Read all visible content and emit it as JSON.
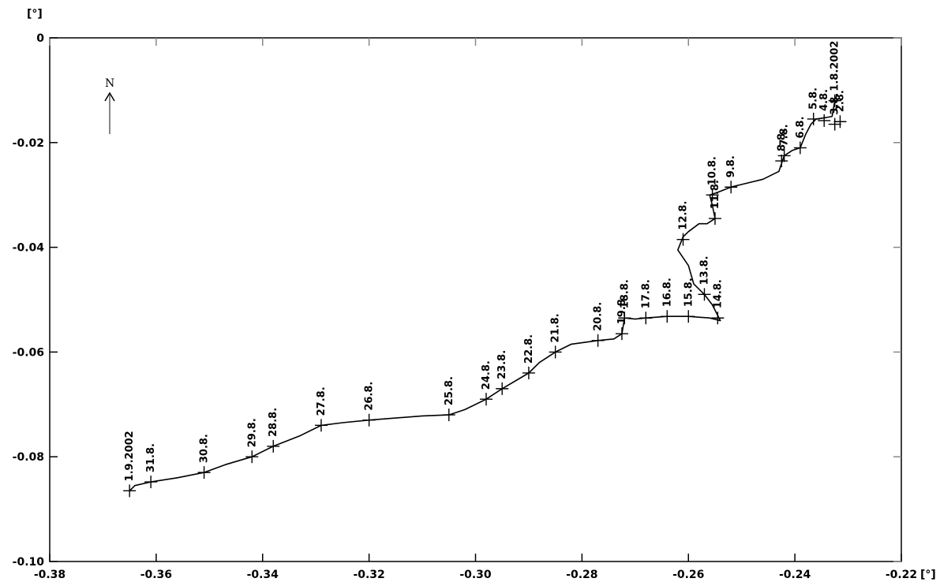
{
  "chart_data": {
    "type": "line",
    "title": "",
    "xlabel": "",
    "ylabel": "",
    "x_unit": "[°]",
    "y_unit": "[°]",
    "xlim": [
      -0.38,
      -0.22
    ],
    "ylim": [
      -0.1,
      0
    ],
    "x_ticks": [
      -0.38,
      -0.36,
      -0.34,
      -0.32,
      -0.3,
      -0.28,
      -0.26,
      -0.24,
      -0.22
    ],
    "x_tick_labels": [
      "-0.38",
      "-0.36",
      "-0.34",
      "-0.32",
      "-0.30",
      "-0.28",
      "-0.26",
      "-0.24",
      "-0.22"
    ],
    "y_ticks": [
      0,
      -0.02,
      -0.04,
      -0.06,
      -0.08,
      -0.1
    ],
    "y_tick_labels": [
      "0",
      "-0.02",
      "-0.04",
      "-0.06",
      "-0.08",
      "-0.10"
    ],
    "grid": false,
    "north_arrow": "N",
    "series": [
      {
        "color": "#000000",
        "points": [
          [
            -0.2325,
            -0.012
          ],
          [
            -0.233,
            -0.015
          ],
          [
            -0.234,
            -0.0152
          ],
          [
            -0.236,
            -0.0155
          ],
          [
            -0.237,
            -0.0165
          ],
          [
            -0.238,
            -0.0185
          ],
          [
            -0.239,
            -0.021
          ],
          [
            -0.2405,
            -0.0215
          ],
          [
            -0.242,
            -0.0225
          ],
          [
            -0.243,
            -0.0255
          ],
          [
            -0.246,
            -0.027
          ],
          [
            -0.25,
            -0.028
          ],
          [
            -0.252,
            -0.0285
          ],
          [
            -0.2545,
            -0.0295
          ],
          [
            -0.256,
            -0.03
          ],
          [
            -0.2555,
            -0.032
          ],
          [
            -0.255,
            -0.0345
          ],
          [
            -0.2565,
            -0.0355
          ],
          [
            -0.258,
            -0.0355
          ],
          [
            -0.26,
            -0.037
          ],
          [
            -0.261,
            -0.038
          ],
          [
            -0.262,
            -0.0405
          ],
          [
            -0.26,
            -0.0435
          ],
          [
            -0.259,
            -0.047
          ],
          [
            -0.257,
            -0.049
          ],
          [
            -0.2555,
            -0.051
          ],
          [
            -0.254,
            -0.054
          ],
          [
            -0.256,
            -0.0535
          ],
          [
            -0.26,
            -0.0532
          ],
          [
            -0.264,
            -0.0532
          ],
          [
            -0.268,
            -0.0535
          ],
          [
            -0.27,
            -0.0537
          ],
          [
            -0.272,
            -0.0535
          ],
          [
            -0.2725,
            -0.0565
          ],
          [
            -0.274,
            -0.0575
          ],
          [
            -0.277,
            -0.0578
          ],
          [
            -0.282,
            -0.0585
          ],
          [
            -0.285,
            -0.06
          ],
          [
            -0.288,
            -0.062
          ],
          [
            -0.29,
            -0.064
          ],
          [
            -0.295,
            -0.067
          ],
          [
            -0.298,
            -0.069
          ],
          [
            -0.302,
            -0.071
          ],
          [
            -0.305,
            -0.072
          ],
          [
            -0.31,
            -0.0722
          ],
          [
            -0.32,
            -0.073
          ],
          [
            -0.325,
            -0.0735
          ],
          [
            -0.329,
            -0.074
          ],
          [
            -0.333,
            -0.076
          ],
          [
            -0.338,
            -0.078
          ],
          [
            -0.342,
            -0.08
          ],
          [
            -0.347,
            -0.0815
          ],
          [
            -0.351,
            -0.083
          ],
          [
            -0.356,
            -0.084
          ],
          [
            -0.361,
            -0.0848
          ],
          [
            -0.364,
            -0.0855
          ],
          [
            -0.365,
            -0.0865
          ]
        ]
      }
    ],
    "date_marks": [
      {
        "label": "1.8.2002",
        "x": -0.2325,
        "y": -0.012
      },
      {
        "label": "2.8.",
        "x": -0.2315,
        "y": -0.016
      },
      {
        "label": "3.8.",
        "x": -0.2325,
        "y": -0.0165
      },
      {
        "label": "4.8.",
        "x": -0.2345,
        "y": -0.0158
      },
      {
        "label": "5.8.",
        "x": -0.2365,
        "y": -0.0155
      },
      {
        "label": "6.8.",
        "x": -0.239,
        "y": -0.021
      },
      {
        "label": "7.8.",
        "x": -0.242,
        "y": -0.0225
      },
      {
        "label": "8.8.",
        "x": -0.2425,
        "y": -0.0235
      },
      {
        "label": "9.8.",
        "x": -0.252,
        "y": -0.0285
      },
      {
        "label": "10.8.",
        "x": -0.2555,
        "y": -0.03
      },
      {
        "label": "11.8.",
        "x": -0.255,
        "y": -0.0345
      },
      {
        "label": "12.8.",
        "x": -0.261,
        "y": -0.0385
      },
      {
        "label": "13.8.",
        "x": -0.257,
        "y": -0.049
      },
      {
        "label": "14.8.",
        "x": -0.2545,
        "y": -0.0535
      },
      {
        "label": "15.8.",
        "x": -0.26,
        "y": -0.0532
      },
      {
        "label": "16.8.",
        "x": -0.264,
        "y": -0.0532
      },
      {
        "label": "17.8.",
        "x": -0.268,
        "y": -0.0535
      },
      {
        "label": "18.8.",
        "x": -0.272,
        "y": -0.0535
      },
      {
        "label": "19.8.",
        "x": -0.2725,
        "y": -0.0565
      },
      {
        "label": "20.8.",
        "x": -0.277,
        "y": -0.0578
      },
      {
        "label": "21.8.",
        "x": -0.285,
        "y": -0.06
      },
      {
        "label": "22.8.",
        "x": -0.29,
        "y": -0.064
      },
      {
        "label": "23.8.",
        "x": -0.295,
        "y": -0.067
      },
      {
        "label": "24.8.",
        "x": -0.298,
        "y": -0.069
      },
      {
        "label": "25.8.",
        "x": -0.305,
        "y": -0.072
      },
      {
        "label": "26.8.",
        "x": -0.32,
        "y": -0.073
      },
      {
        "label": "27.8.",
        "x": -0.329,
        "y": -0.074
      },
      {
        "label": "28.8.",
        "x": -0.338,
        "y": -0.078
      },
      {
        "label": "29.8.",
        "x": -0.342,
        "y": -0.08
      },
      {
        "label": "30.8.",
        "x": -0.351,
        "y": -0.083
      },
      {
        "label": "31.8.",
        "x": -0.361,
        "y": -0.0848
      },
      {
        "label": "1.9.2002",
        "x": -0.365,
        "y": -0.0865
      }
    ]
  }
}
